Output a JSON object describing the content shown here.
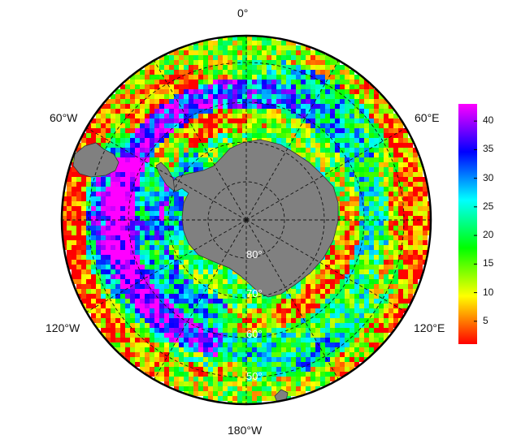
{
  "map": {
    "projection": "south-polar-stereographic",
    "longitude_labels": {
      "top": "0°",
      "upper_left": "60°W",
      "upper_right": "60°E",
      "lower_left": "120°W",
      "lower_right": "120°E",
      "bottom": "180°W"
    },
    "latitude_labels": [
      "80°",
      "70°",
      "60°",
      "50°"
    ],
    "graticule": "dashed",
    "land_color": "#808080",
    "palette": "rainbow (red to magenta)"
  },
  "colorbar": {
    "ticks": [
      "5",
      "10",
      "15",
      "20",
      "25",
      "30",
      "35",
      "40"
    ],
    "range": [
      1,
      43
    ],
    "colors": [
      "#ff0000",
      "#ff8000",
      "#ffff00",
      "#80ff00",
      "#00ff00",
      "#00ff80",
      "#00ffff",
      "#0080ff",
      "#0000ff",
      "#8000ff",
      "#ff00ff"
    ]
  }
}
